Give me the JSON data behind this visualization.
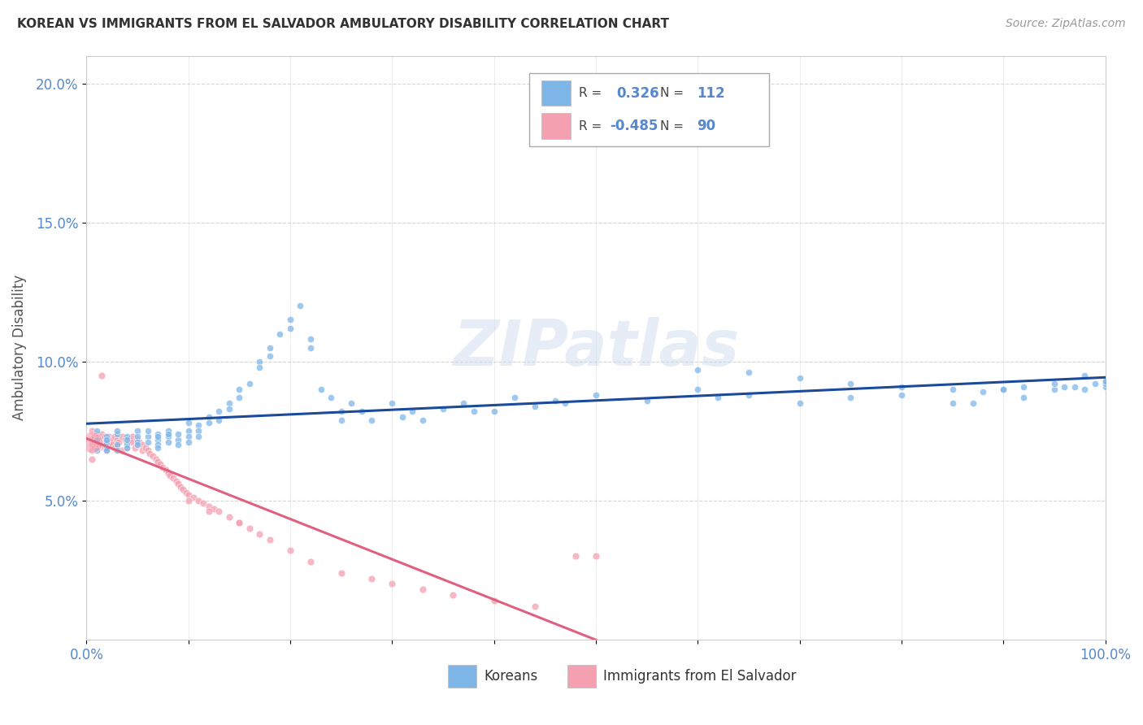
{
  "title": "KOREAN VS IMMIGRANTS FROM EL SALVADOR AMBULATORY DISABILITY CORRELATION CHART",
  "source": "Source: ZipAtlas.com",
  "ylabel": "Ambulatory Disability",
  "xlim": [
    0.0,
    1.0
  ],
  "ylim": [
    0.0,
    0.21
  ],
  "yticks": [
    0.05,
    0.1,
    0.15,
    0.2
  ],
  "ytick_labels": [
    "5.0%",
    "10.0%",
    "15.0%",
    "20.0%"
  ],
  "xticks": [
    0.0,
    0.1,
    0.2,
    0.3,
    0.4,
    0.5,
    0.6,
    0.7,
    0.8,
    0.9,
    1.0
  ],
  "watermark": "ZIPatlas",
  "blue_color": "#7eb6e8",
  "pink_color": "#f4a0b0",
  "blue_line_color": "#1a4a99",
  "pink_line_color": "#e06080",
  "axis_color": "#5588cc",
  "grid_color": "#cccccc",
  "title_color": "#333333",
  "source_color": "#999999",
  "legend_labels": [
    "Koreans",
    "Immigrants from El Salvador"
  ],
  "r_korean": "0.326",
  "n_korean": "112",
  "r_salvador": "-0.485",
  "n_salvador": "90",
  "korean_x": [
    0.01,
    0.01,
    0.01,
    0.02,
    0.02,
    0.02,
    0.02,
    0.02,
    0.03,
    0.03,
    0.03,
    0.03,
    0.04,
    0.04,
    0.04,
    0.04,
    0.05,
    0.05,
    0.05,
    0.05,
    0.06,
    0.06,
    0.06,
    0.07,
    0.07,
    0.07,
    0.07,
    0.07,
    0.08,
    0.08,
    0.08,
    0.08,
    0.09,
    0.09,
    0.09,
    0.1,
    0.1,
    0.1,
    0.1,
    0.11,
    0.11,
    0.11,
    0.12,
    0.12,
    0.13,
    0.13,
    0.14,
    0.14,
    0.15,
    0.15,
    0.16,
    0.17,
    0.17,
    0.18,
    0.18,
    0.19,
    0.2,
    0.2,
    0.21,
    0.22,
    0.22,
    0.23,
    0.24,
    0.25,
    0.25,
    0.26,
    0.27,
    0.28,
    0.3,
    0.31,
    0.32,
    0.33,
    0.35,
    0.37,
    0.38,
    0.4,
    0.42,
    0.44,
    0.46,
    0.47,
    0.5,
    0.55,
    0.6,
    0.62,
    0.65,
    0.7,
    0.75,
    0.8,
    0.85,
    0.87,
    0.9,
    0.92,
    0.95,
    0.96,
    0.98,
    0.6,
    0.65,
    0.7,
    0.75,
    0.8,
    0.85,
    0.88,
    0.9,
    0.92,
    0.95,
    0.97,
    0.98,
    0.99,
    1.0,
    1.0,
    1.0,
    1.0
  ],
  "korean_y": [
    0.072,
    0.075,
    0.068,
    0.073,
    0.071,
    0.069,
    0.068,
    0.072,
    0.074,
    0.07,
    0.068,
    0.075,
    0.073,
    0.07,
    0.072,
    0.069,
    0.075,
    0.073,
    0.071,
    0.07,
    0.073,
    0.075,
    0.071,
    0.074,
    0.072,
    0.07,
    0.073,
    0.069,
    0.075,
    0.073,
    0.071,
    0.074,
    0.072,
    0.074,
    0.07,
    0.078,
    0.075,
    0.073,
    0.071,
    0.077,
    0.075,
    0.073,
    0.08,
    0.078,
    0.082,
    0.079,
    0.085,
    0.083,
    0.09,
    0.087,
    0.092,
    0.1,
    0.098,
    0.105,
    0.102,
    0.11,
    0.115,
    0.112,
    0.12,
    0.108,
    0.105,
    0.09,
    0.087,
    0.082,
    0.079,
    0.085,
    0.082,
    0.079,
    0.085,
    0.08,
    0.082,
    0.079,
    0.083,
    0.085,
    0.082,
    0.082,
    0.087,
    0.084,
    0.086,
    0.085,
    0.088,
    0.086,
    0.09,
    0.087,
    0.088,
    0.085,
    0.087,
    0.088,
    0.085,
    0.085,
    0.09,
    0.087,
    0.09,
    0.091,
    0.095,
    0.097,
    0.096,
    0.094,
    0.092,
    0.091,
    0.09,
    0.089,
    0.09,
    0.091,
    0.092,
    0.091,
    0.09,
    0.092,
    0.093,
    0.091,
    0.092,
    0.093
  ],
  "salvador_x": [
    0.005,
    0.005,
    0.005,
    0.005,
    0.005,
    0.008,
    0.008,
    0.008,
    0.01,
    0.01,
    0.01,
    0.012,
    0.012,
    0.012,
    0.015,
    0.015,
    0.015,
    0.015,
    0.018,
    0.018,
    0.018,
    0.02,
    0.02,
    0.02,
    0.022,
    0.022,
    0.025,
    0.025,
    0.028,
    0.028,
    0.03,
    0.03,
    0.032,
    0.035,
    0.035,
    0.038,
    0.04,
    0.04,
    0.042,
    0.045,
    0.045,
    0.048,
    0.05,
    0.05,
    0.052,
    0.055,
    0.055,
    0.058,
    0.06,
    0.062,
    0.065,
    0.068,
    0.07,
    0.072,
    0.075,
    0.078,
    0.08,
    0.082,
    0.085,
    0.088,
    0.09,
    0.092,
    0.095,
    0.098,
    0.1,
    0.105,
    0.11,
    0.115,
    0.12,
    0.125,
    0.13,
    0.14,
    0.15,
    0.16,
    0.17,
    0.18,
    0.2,
    0.22,
    0.25,
    0.28,
    0.3,
    0.33,
    0.36,
    0.4,
    0.44,
    0.48,
    0.5,
    0.1,
    0.12,
    0.15
  ],
  "salvador_y": [
    0.072,
    0.075,
    0.07,
    0.068,
    0.065,
    0.073,
    0.071,
    0.069,
    0.074,
    0.072,
    0.07,
    0.073,
    0.071,
    0.069,
    0.074,
    0.072,
    0.07,
    0.095,
    0.073,
    0.071,
    0.069,
    0.072,
    0.07,
    0.068,
    0.073,
    0.071,
    0.072,
    0.07,
    0.073,
    0.069,
    0.072,
    0.07,
    0.071,
    0.073,
    0.068,
    0.072,
    0.071,
    0.069,
    0.072,
    0.073,
    0.071,
    0.069,
    0.072,
    0.07,
    0.071,
    0.07,
    0.068,
    0.069,
    0.068,
    0.067,
    0.066,
    0.065,
    0.064,
    0.063,
    0.062,
    0.061,
    0.06,
    0.059,
    0.058,
    0.057,
    0.056,
    0.055,
    0.054,
    0.053,
    0.052,
    0.051,
    0.05,
    0.049,
    0.048,
    0.047,
    0.046,
    0.044,
    0.042,
    0.04,
    0.038,
    0.036,
    0.032,
    0.028,
    0.024,
    0.022,
    0.02,
    0.018,
    0.016,
    0.014,
    0.012,
    0.03,
    0.03,
    0.05,
    0.046,
    0.042
  ]
}
